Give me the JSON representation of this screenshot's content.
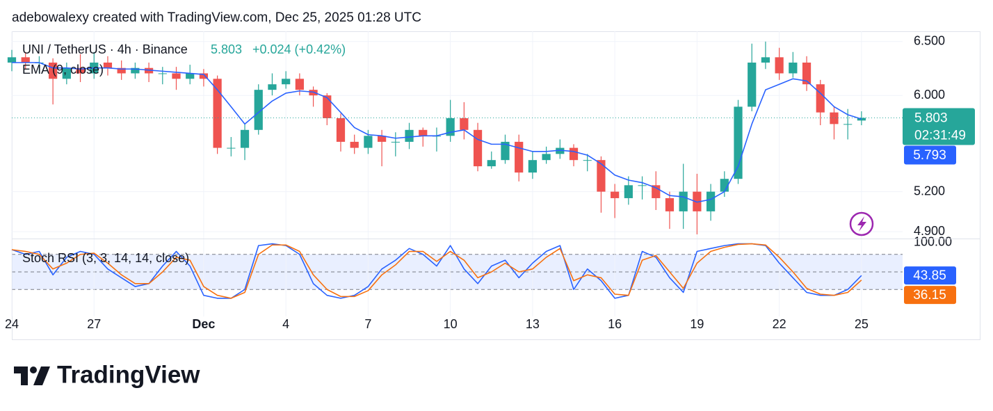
{
  "header": "adebowalexy created with TradingView.com, Dec 25, 2025 01:28 UTC",
  "logo": "TradingView",
  "chart_data": [
    {
      "type": "candlestick",
      "title": "UNI / TetherUS · 4h · Binance",
      "change": "+0.024 (+0.42%)",
      "countdown": "02:31:49",
      "x": [
        0,
        0.5,
        1,
        1.5,
        2,
        2.5,
        3,
        3.5,
        4,
        4.5,
        5,
        5.5,
        6,
        6.5,
        7,
        7.5,
        8,
        8.5,
        9,
        9.5,
        10,
        10.5,
        11,
        11.5,
        12,
        12.5,
        13,
        13.5,
        14,
        14.5,
        15,
        15.5,
        16,
        16.5,
        17,
        17.5,
        18,
        18.5,
        19,
        19.5,
        20,
        20.5,
        21,
        21.5,
        22,
        22.5,
        23,
        23.5,
        24,
        24.5,
        25,
        25.5,
        26,
        26.5,
        27,
        27.5,
        28,
        28.5,
        29,
        29.5,
        30,
        30.5,
        31
      ],
      "open": [
        6.3,
        6.35,
        6.3,
        6.3,
        6.15,
        6.25,
        6.2,
        6.3,
        6.25,
        6.2,
        6.25,
        6.2,
        6.2,
        6.15,
        6.2,
        6.15,
        5.55,
        5.55,
        5.7,
        6.05,
        6.1,
        6.15,
        6.05,
        6.0,
        5.8,
        5.6,
        5.55,
        5.65,
        5.6,
        5.6,
        5.7,
        5.65,
        5.65,
        5.8,
        5.7,
        5.4,
        5.45,
        5.6,
        5.35,
        5.45,
        5.5,
        5.55,
        5.45,
        5.45,
        5.2,
        5.15,
        5.25,
        5.25,
        5.15,
        5.05,
        5.2,
        5.05,
        5.2,
        5.3,
        5.9,
        6.3,
        6.35,
        6.2,
        6.3,
        6.1,
        5.85,
        5.75,
        5.78
      ],
      "high": [
        6.42,
        6.4,
        6.36,
        6.34,
        6.3,
        6.38,
        6.4,
        6.36,
        6.32,
        6.3,
        6.3,
        6.26,
        6.26,
        6.28,
        6.24,
        6.18,
        5.64,
        5.75,
        6.1,
        6.2,
        6.22,
        6.2,
        6.08,
        6.02,
        5.84,
        5.66,
        5.7,
        5.7,
        5.68,
        5.76,
        5.72,
        5.72,
        5.96,
        5.94,
        5.76,
        5.52,
        5.66,
        5.66,
        5.52,
        5.56,
        5.62,
        5.58,
        5.5,
        5.48,
        5.26,
        5.32,
        5.32,
        5.36,
        5.2,
        5.42,
        5.34,
        5.26,
        5.36,
        5.96,
        6.48,
        6.5,
        6.44,
        6.4,
        6.36,
        6.14,
        5.9,
        5.88,
        5.86
      ],
      "low": [
        6.22,
        6.24,
        6.2,
        5.92,
        6.1,
        6.12,
        6.15,
        6.18,
        6.14,
        6.15,
        6.12,
        6.1,
        6.05,
        6.1,
        6.08,
        5.5,
        5.48,
        5.45,
        5.66,
        6.0,
        6.06,
        6.0,
        5.9,
        5.74,
        5.52,
        5.5,
        5.5,
        5.4,
        5.48,
        5.54,
        5.56,
        5.52,
        5.6,
        5.62,
        5.36,
        5.38,
        5.42,
        5.28,
        5.3,
        5.42,
        5.46,
        5.4,
        5.36,
        5.04,
        5.0,
        5.1,
        5.14,
        5.06,
        4.92,
        4.92,
        4.88,
        4.98,
        5.16,
        5.26,
        5.86,
        6.24,
        6.14,
        6.16,
        6.04,
        5.74,
        5.62,
        5.62,
        5.74
      ],
      "close": [
        6.35,
        6.3,
        6.3,
        6.15,
        6.25,
        6.2,
        6.3,
        6.25,
        6.2,
        6.25,
        6.2,
        6.2,
        6.15,
        6.2,
        6.15,
        5.55,
        5.55,
        5.7,
        6.05,
        6.1,
        6.15,
        6.05,
        6.0,
        5.8,
        5.6,
        5.55,
        5.65,
        5.6,
        5.6,
        5.7,
        5.65,
        5.65,
        5.8,
        5.7,
        5.4,
        5.45,
        5.6,
        5.35,
        5.45,
        5.5,
        5.55,
        5.45,
        5.45,
        5.2,
        5.15,
        5.25,
        5.25,
        5.15,
        5.05,
        5.2,
        5.05,
        5.2,
        5.3,
        5.9,
        6.3,
        6.35,
        6.2,
        6.3,
        6.1,
        5.85,
        5.75,
        5.75,
        5.803
      ],
      "up_color": "#26a69a",
      "down_color": "#ef5350",
      "series": [
        {
          "name": "EMA (9, close)",
          "color": "#2962ff",
          "values": [
            6.3,
            6.3,
            6.3,
            6.25,
            6.25,
            6.24,
            6.25,
            6.25,
            6.24,
            6.24,
            6.23,
            6.22,
            6.21,
            6.2,
            6.19,
            6.05,
            5.9,
            5.75,
            5.85,
            5.95,
            6.02,
            6.04,
            6.03,
            5.98,
            5.85,
            5.72,
            5.66,
            5.65,
            5.63,
            5.64,
            5.65,
            5.65,
            5.68,
            5.7,
            5.62,
            5.58,
            5.58,
            5.55,
            5.52,
            5.52,
            5.53,
            5.52,
            5.49,
            5.42,
            5.33,
            5.29,
            5.27,
            5.23,
            5.17,
            5.16,
            5.12,
            5.14,
            5.2,
            5.4,
            5.75,
            6.05,
            6.1,
            6.15,
            6.13,
            6.02,
            5.9,
            5.83,
            5.793
          ]
        }
      ],
      "xlim": [
        0,
        32.5
      ],
      "ylim": [
        4.85,
        6.6
      ],
      "log": true,
      "yticks": [
        {
          "value": 4.9,
          "label": "4.900"
        },
        {
          "value": 5.2,
          "label": "5.200"
        },
        {
          "value": 6,
          "label": "6.000"
        },
        {
          "value": 6.5,
          "label": "6.500"
        }
      ],
      "grid": true
    },
    {
      "type": "line",
      "title": "Stoch RSI (3, 3, 14, 14, close)",
      "x": [
        0,
        0.5,
        1,
        1.5,
        2,
        2.5,
        3,
        3.5,
        4,
        4.5,
        5,
        5.5,
        6,
        6.5,
        7,
        7.5,
        8,
        8.5,
        9,
        9.5,
        10,
        10.5,
        11,
        11.5,
        12,
        12.5,
        13,
        13.5,
        14,
        14.5,
        15,
        15.5,
        16,
        16.5,
        17,
        17.5,
        18,
        18.5,
        19,
        19.5,
        20,
        20.5,
        21,
        21.5,
        22,
        22.5,
        23,
        23.5,
        24,
        24.5,
        25,
        25.5,
        26,
        26.5,
        27,
        27.5,
        28,
        28.5,
        29,
        29.5,
        30,
        30.5,
        31
      ],
      "series": [
        {
          "color": "#2962ff",
          "values": [
            88,
            80,
            85,
            45,
            75,
            85,
            80,
            55,
            40,
            25,
            30,
            60,
            85,
            60,
            10,
            5,
            5,
            20,
            95,
            98,
            95,
            80,
            30,
            10,
            5,
            10,
            25,
            55,
            70,
            90,
            80,
            60,
            95,
            55,
            30,
            60,
            70,
            40,
            65,
            85,
            95,
            20,
            55,
            35,
            5,
            10,
            85,
            75,
            40,
            15,
            85,
            90,
            95,
            98,
            98,
            95,
            65,
            40,
            15,
            10,
            10,
            20,
            43.85
          ]
        },
        {
          "color": "#f7700f",
          "values": [
            88,
            85,
            80,
            55,
            65,
            80,
            82,
            65,
            45,
            30,
            30,
            50,
            75,
            70,
            25,
            10,
            5,
            15,
            80,
            96,
            96,
            85,
            45,
            20,
            8,
            8,
            18,
            45,
            62,
            85,
            85,
            68,
            85,
            70,
            40,
            50,
            65,
            50,
            55,
            75,
            90,
            35,
            45,
            40,
            12,
            10,
            70,
            78,
            50,
            22,
            65,
            85,
            92,
            97,
            98,
            96,
            75,
            50,
            22,
            12,
            10,
            15,
            36.15
          ]
        }
      ],
      "bands": [
        20,
        50,
        80
      ],
      "xlim": [
        0,
        32.5
      ],
      "ylim": [
        -26,
        107
      ],
      "yticks": [
        {
          "value": 100,
          "label": "100.00"
        }
      ],
      "xticks": [
        {
          "value": 0,
          "label": "24"
        },
        {
          "value": 3,
          "label": "27"
        },
        {
          "value": 7,
          "label": "Dec"
        },
        {
          "value": 10,
          "label": "4"
        },
        {
          "value": 13,
          "label": "7"
        },
        {
          "value": 16,
          "label": "10"
        },
        {
          "value": 19,
          "label": "13"
        },
        {
          "value": 22,
          "label": "16"
        },
        {
          "value": 25,
          "label": "19"
        },
        {
          "value": 28,
          "label": "22"
        },
        {
          "value": 31,
          "label": "25"
        }
      ]
    }
  ]
}
